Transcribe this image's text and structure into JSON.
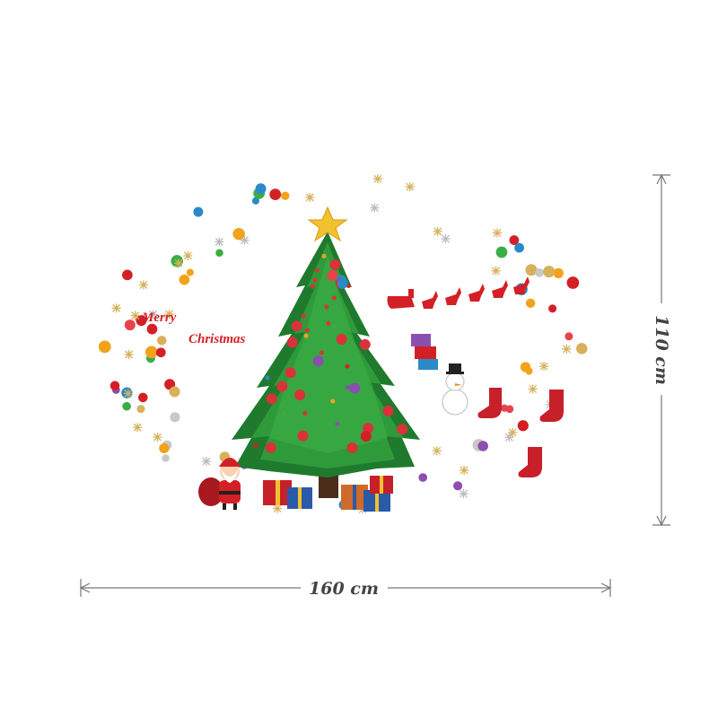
{
  "greeting": {
    "line1": "Merry",
    "line2": "Christmas"
  },
  "dimensions": {
    "width": "160 cm",
    "height": "110 cm"
  }
}
